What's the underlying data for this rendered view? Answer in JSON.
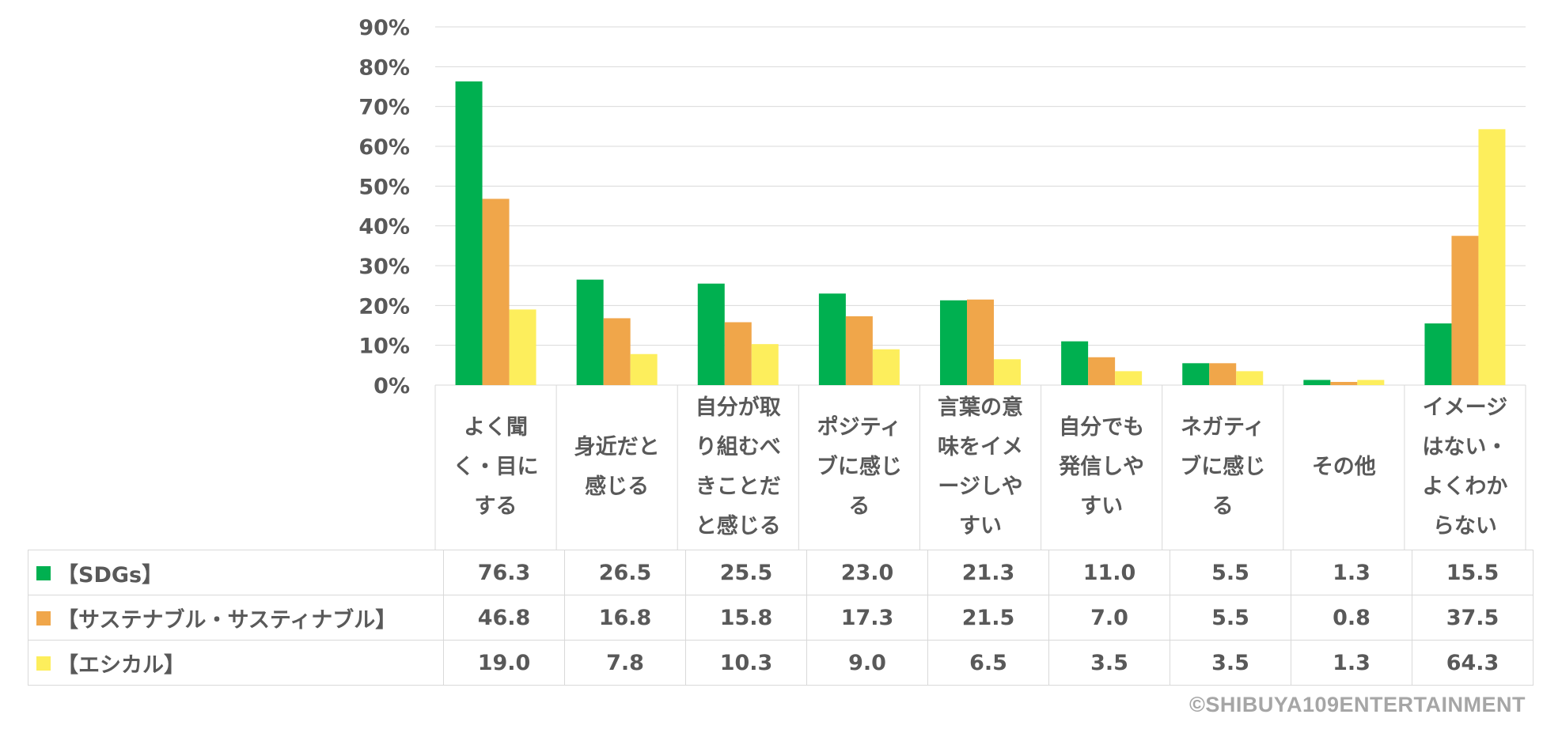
{
  "chart_data": {
    "type": "bar",
    "categories": [
      "よく聞く・目にする",
      "身近だと感じる",
      "自分が取り組むべきことだと感じる",
      "ポジティブに感じる",
      "言葉の意味をイメージしやすい",
      "自分でも発信しやすい",
      "ネガティブに感じる",
      "その他",
      "イメージはない・よくわからない"
    ],
    "series": [
      {
        "name": "【SDGs】",
        "color": "#00b050",
        "values": [
          76.3,
          26.5,
          25.5,
          23.0,
          21.3,
          11.0,
          5.5,
          1.3,
          15.5
        ],
        "labels": [
          "76.3",
          "26.5",
          "25.5",
          "23.0",
          "21.3",
          "11.0",
          "5.5",
          "1.3",
          "15.5"
        ]
      },
      {
        "name": "【サステナブル・サスティナブル】",
        "color": "#f0a64a",
        "values": [
          46.8,
          16.8,
          15.8,
          17.3,
          21.5,
          7.0,
          5.5,
          0.8,
          37.5
        ],
        "labels": [
          "46.8",
          "16.8",
          "15.8",
          "17.3",
          "21.5",
          "7.0",
          "5.5",
          "0.8",
          "37.5"
        ]
      },
      {
        "name": "【エシカル】",
        "color": "#fdee5c",
        "values": [
          19.0,
          7.8,
          10.3,
          9.0,
          6.5,
          3.5,
          3.5,
          1.3,
          64.3
        ],
        "labels": [
          "19.0",
          "7.8",
          "10.3",
          "9.0",
          "6.5",
          "3.5",
          "3.5",
          "1.3",
          "64.3"
        ]
      }
    ],
    "yticks": [
      "0%",
      "10%",
      "20%",
      "30%",
      "40%",
      "50%",
      "60%",
      "70%",
      "80%",
      "90%"
    ],
    "ylim": [
      0,
      90
    ],
    "grid": true,
    "legend": "data-table"
  },
  "credit": "©SHIBUYA109ENTERTAINMENT"
}
